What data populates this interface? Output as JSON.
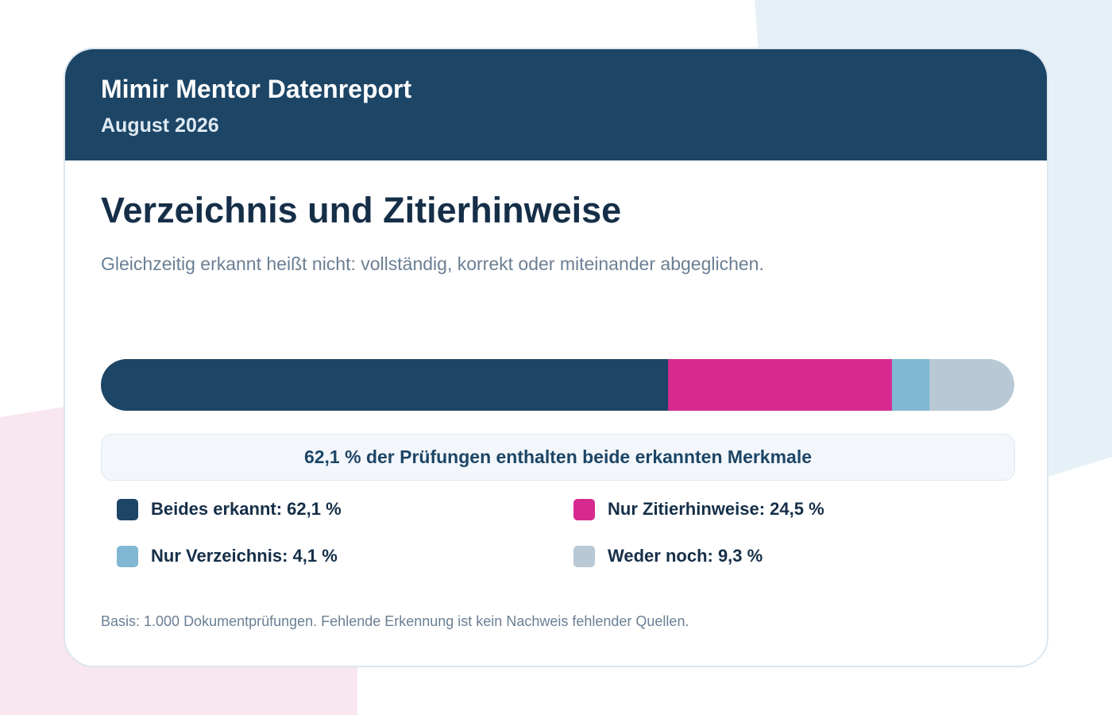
{
  "header": {
    "brand": "Mimir Mentor Datenreport",
    "period": "August 2026"
  },
  "main": {
    "title": "Verzeichnis und Zitierhinweise",
    "subtitle": "Gleichzeitig erkannt heißt nicht: vollständig, korrekt oder miteinander abgeglichen.",
    "callout": "62,1 % der Prüfungen enthalten beide erkannten Merkmale",
    "footnote": "Basis: 1.000 Dokumentprüfungen. Fehlende Erkennung ist kein Nachweis fehlender Quellen."
  },
  "colors": {
    "header_bg": "#1c4566",
    "both": "#1c4566",
    "citations_only": "#d62a8f",
    "bibliography_only": "#80b7d3",
    "neither": "#b8c9d5",
    "bg_blue": "#e6f1f7",
    "bg_pink": "#f8e6f0"
  },
  "chart_data": {
    "type": "bar",
    "orientation": "horizontal-stacked-100",
    "categories": [
      "Beides erkannt",
      "Nur Zitierhinweise",
      "Nur Verzeichnis",
      "Weder noch"
    ],
    "values": [
      62.1,
      24.5,
      4.1,
      9.3
    ],
    "unit": "%",
    "series_colors": [
      "#1c4566",
      "#d62a8f",
      "#80b7d3",
      "#b8c9d5"
    ],
    "legend": [
      {
        "label": "Beides erkannt: 62,1 %",
        "color": "#1c4566"
      },
      {
        "label": "Nur Zitierhinweise: 24,5 %",
        "color": "#d62a8f"
      },
      {
        "label": "Nur Verzeichnis: 4,1 %",
        "color": "#80b7d3"
      },
      {
        "label": "Weder noch: 9,3 %",
        "color": "#b8c9d5"
      }
    ],
    "legend_placement": "below, two columns",
    "grid": false
  }
}
